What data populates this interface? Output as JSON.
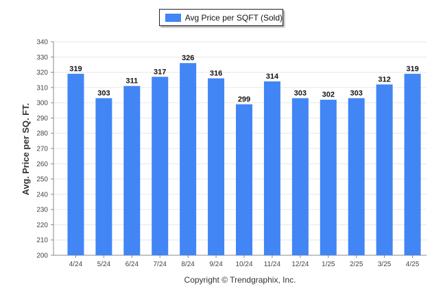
{
  "colors": {
    "bar": "#4285f4",
    "grid": "#e6e6e6",
    "axis": "#888888",
    "text": "#222222"
  },
  "legend": {
    "label": "Avg Price per SQFT (Sold)"
  },
  "footer": {
    "copyright": "Copyright © Trendgraphix, Inc."
  },
  "chart_data": {
    "type": "bar",
    "categories": [
      "4/24",
      "5/24",
      "6/24",
      "7/24",
      "8/24",
      "9/24",
      "10/24",
      "11/24",
      "12/24",
      "1/25",
      "2/25",
      "3/25",
      "4/25"
    ],
    "series": [
      {
        "name": "Avg Price per SQFT (Sold)",
        "values": [
          319,
          303,
          311,
          317,
          326,
          316,
          299,
          314,
          303,
          302,
          303,
          312,
          319
        ]
      }
    ],
    "xlabel": "",
    "ylabel": "Avg. Price per SQ. FT.",
    "ylim": [
      200,
      340
    ],
    "yticks": [
      200,
      210,
      220,
      230,
      240,
      250,
      260,
      270,
      280,
      290,
      300,
      310,
      320,
      330,
      340
    ],
    "grid": true,
    "legend_position": "top-center",
    "data_labels": true
  }
}
